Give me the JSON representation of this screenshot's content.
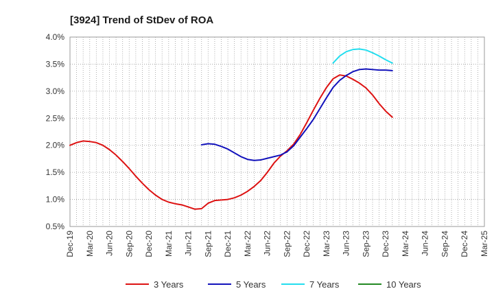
{
  "chart_data": {
    "type": "line",
    "title": "[3924]  Trend of StDev of ROA",
    "xlabel": "",
    "ylabel": "",
    "ylim": [
      0.5,
      4.0
    ],
    "yticks": [
      0.5,
      1.0,
      1.5,
      2.0,
      2.5,
      3.0,
      3.5,
      4.0
    ],
    "ytick_labels": [
      "0.5%",
      "1.0%",
      "1.5%",
      "2.0%",
      "2.5%",
      "3.0%",
      "3.5%",
      "4.0%"
    ],
    "x_categories": [
      "Dec-19",
      "Mar-20",
      "Jun-20",
      "Sep-20",
      "Dec-20",
      "Mar-21",
      "Jun-21",
      "Sep-21",
      "Dec-21",
      "Mar-22",
      "Jun-22",
      "Sep-22",
      "Dec-22",
      "Mar-23",
      "Jun-23",
      "Sep-23",
      "Dec-23",
      "Mar-24",
      "Jun-24",
      "Sep-24",
      "Dec-24",
      "Mar-25"
    ],
    "grid": true,
    "legend_position": "bottom",
    "series": [
      {
        "name": "3 Years",
        "color": "#dd1111",
        "start_index": 0,
        "values": [
          2.0,
          2.05,
          2.08,
          2.07,
          2.05,
          2.0,
          1.92,
          1.82,
          1.7,
          1.57,
          1.43,
          1.3,
          1.18,
          1.08,
          1.0,
          0.95,
          0.92,
          0.9,
          0.86,
          0.82,
          0.83,
          0.93,
          0.98,
          0.99,
          1.0,
          1.03,
          1.08,
          1.15,
          1.24,
          1.35,
          1.5,
          1.67,
          1.8,
          1.9,
          2.02,
          2.2,
          2.42,
          2.65,
          2.87,
          3.07,
          3.23,
          3.3,
          3.28,
          3.22,
          3.15,
          3.06,
          2.93,
          2.77,
          2.63,
          2.52
        ]
      },
      {
        "name": "5 Years",
        "color": "#1111bb",
        "start_index": 20,
        "values": [
          2.01,
          2.03,
          2.02,
          1.98,
          1.93,
          1.86,
          1.79,
          1.74,
          1.72,
          1.73,
          1.76,
          1.79,
          1.82,
          1.88,
          1.99,
          2.15,
          2.31,
          2.48,
          2.68,
          2.88,
          3.07,
          3.2,
          3.29,
          3.36,
          3.4,
          3.41,
          3.4,
          3.39,
          3.39,
          3.38
        ]
      },
      {
        "name": "7 Years",
        "color": "#22ddee",
        "start_index": 40,
        "values": [
          3.52,
          3.65,
          3.73,
          3.77,
          3.78,
          3.76,
          3.71,
          3.65,
          3.58,
          3.52
        ]
      },
      {
        "name": "10 Years",
        "color": "#228822",
        "start_index": 0,
        "values": []
      }
    ]
  }
}
